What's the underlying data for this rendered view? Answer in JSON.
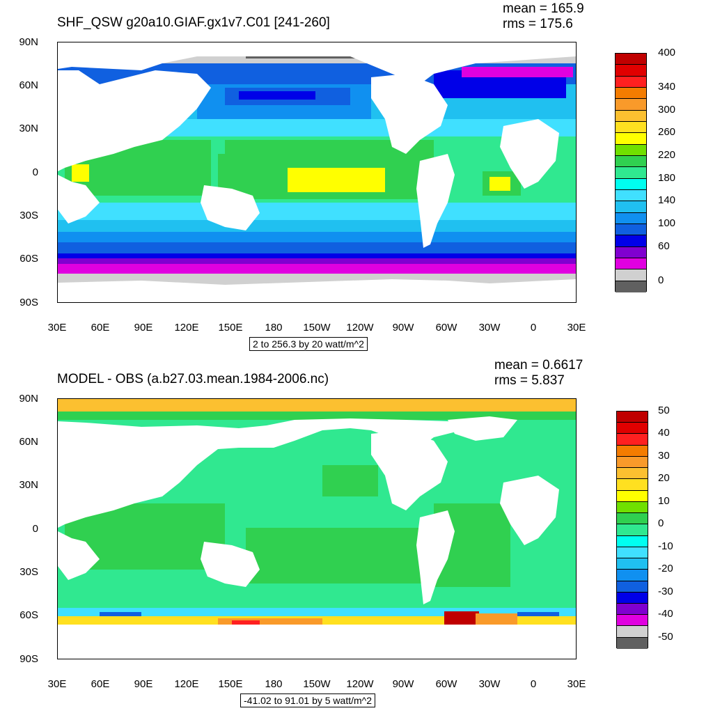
{
  "panels": [
    {
      "title": "SHF_QSW g20a10.GIAF.gx1v7.C01 [241-260]",
      "stats": {
        "mean": "mean = 165.9",
        "rms": "rms = 175.6"
      },
      "lat_labels": [
        "90N",
        "60N",
        "30N",
        "0",
        "30S",
        "60S",
        "90S"
      ],
      "lon_labels": [
        "30E",
        "60E",
        "90E",
        "120E",
        "150E",
        "180",
        "150W",
        "120W",
        "90W",
        "60W",
        "30W",
        "0",
        "30E"
      ],
      "contour_info": "2 to 256.3 by 20 watt/m^2",
      "colorbar": {
        "colors": [
          "#c00000",
          "#e00000",
          "#ff2020",
          "#f47c00",
          "#f99a2a",
          "#fcc030",
          "#ffe020",
          "#ffff00",
          "#70e000",
          "#30d050",
          "#30e890",
          "#00fff0",
          "#40e0ff",
          "#20c0f0",
          "#1090f0",
          "#1060e0",
          "#0000e8",
          "#8000d0",
          "#e000e0",
          "#d0d0d0",
          "#606060"
        ],
        "labels": [
          "400",
          "340",
          "300",
          "260",
          "220",
          "180",
          "140",
          "100",
          "60",
          "0"
        ]
      }
    },
    {
      "title": "MODEL - OBS (a.b27.03.mean.1984-2006.nc)",
      "stats": {
        "mean": "mean = 0.6617",
        "rms": "rms = 5.837"
      },
      "lat_labels": [
        "90N",
        "60N",
        "30N",
        "0",
        "30S",
        "60S",
        "90S"
      ],
      "lon_labels": [
        "30E",
        "60E",
        "90E",
        "120E",
        "150E",
        "180",
        "150W",
        "120W",
        "90W",
        "60W",
        "30W",
        "0",
        "30E"
      ],
      "contour_info": "-41.02 to 91.01 by 5 watt/m^2",
      "colorbar": {
        "colors": [
          "#c00000",
          "#e00000",
          "#ff2020",
          "#f47c00",
          "#f99a2a",
          "#fcc030",
          "#ffe020",
          "#ffff00",
          "#70e000",
          "#30d050",
          "#30e890",
          "#00fff0",
          "#40e0ff",
          "#20c0f0",
          "#1090f0",
          "#1060e0",
          "#0000e8",
          "#8000d0",
          "#e000e0",
          "#d0d0d0",
          "#606060"
        ],
        "labels": [
          "50",
          "40",
          "30",
          "20",
          "10",
          "0",
          "-10",
          "-20",
          "-30",
          "-40",
          "-50"
        ]
      }
    }
  ]
}
